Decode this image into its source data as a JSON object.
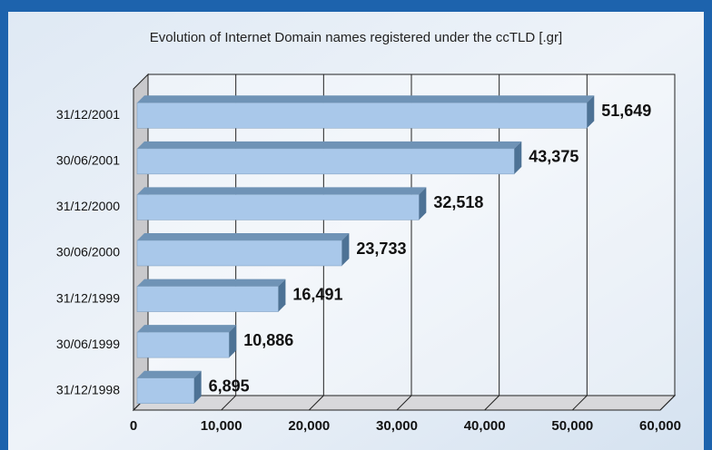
{
  "chart_data": {
    "type": "bar",
    "orientation": "horizontal",
    "title": "Evolution of Internet Domain names registered under the ccTLD [.gr]",
    "categories": [
      "31/12/2001",
      "30/06/2001",
      "31/12/2000",
      "30/06/2000",
      "31/12/1999",
      "30/06/1999",
      "31/12/1998"
    ],
    "values": [
      51649,
      43375,
      32518,
      23733,
      16491,
      10886,
      6895
    ],
    "value_labels": [
      "51,649",
      "43,375",
      "32,518",
      "23,733",
      "16,491",
      "10,886",
      "6,895"
    ],
    "color": "#a9c8ea",
    "xlim": [
      0,
      60000
    ],
    "xticks": [
      0,
      {
        "value": 10000,
        "label": "10,000"
      },
      {
        "value": 20000,
        "label": "20,000"
      },
      {
        "value": 30000,
        "label": "30,000"
      },
      {
        "value": 40000,
        "label": "40,000"
      },
      {
        "value": 50000,
        "label": "50,000"
      },
      {
        "value": 60000,
        "label": "60,000"
      }
    ],
    "grid": true
  }
}
